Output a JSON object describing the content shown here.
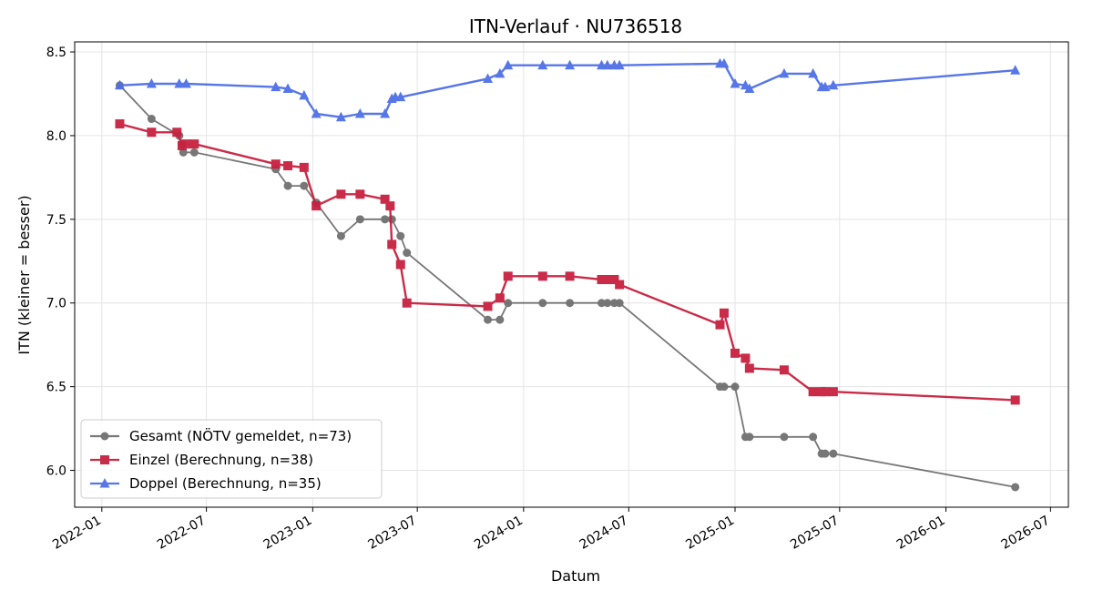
{
  "chart_data": {
    "type": "line",
    "title": "ITN-Verlauf · NU736518",
    "xlabel": "Datum",
    "ylabel": "ITN  (kleiner = besser)",
    "x_type": "date",
    "xlim": [
      "2021-11-15",
      "2026-08-01"
    ],
    "ylim": [
      5.78,
      8.56
    ],
    "x_ticks": [
      "2022-01",
      "2022-07",
      "2023-01",
      "2023-07",
      "2024-01",
      "2024-07",
      "2025-01",
      "2025-07",
      "2026-01",
      "2026-07"
    ],
    "y_ticks": [
      "6.0",
      "6.5",
      "7.0",
      "7.5",
      "8.0",
      "8.5"
    ],
    "grid": true,
    "legend_position": "lower-left",
    "series": [
      {
        "name": "Gesamt (NÖTV gemeldet, n=73)",
        "color": "#444444",
        "marker": "circle",
        "x": [
          "2022-02-01",
          "2022-03-28",
          "2022-05-15",
          "2022-05-20",
          "2022-05-22",
          "2022-06-10",
          "2022-10-29",
          "2022-11-19",
          "2022-12-17",
          "2023-01-07",
          "2023-02-19",
          "2023-03-24",
          "2023-05-06",
          "2023-05-18",
          "2023-06-02",
          "2023-06-13",
          "2023-10-31",
          "2023-11-21",
          "2023-12-05",
          "2024-02-03",
          "2024-03-21",
          "2024-05-15",
          "2024-05-25",
          "2024-06-06",
          "2024-06-15",
          "2024-12-06",
          "2024-12-13",
          "2025-01-01",
          "2025-01-19",
          "2025-01-26",
          "2025-03-27",
          "2025-05-16",
          "2025-05-31",
          "2025-06-06",
          "2025-06-20",
          "2026-05-01"
        ],
        "y": [
          8.3,
          8.1,
          8.0,
          7.95,
          7.9,
          7.9,
          7.8,
          7.7,
          7.7,
          7.6,
          7.4,
          7.5,
          7.5,
          7.5,
          7.4,
          7.3,
          6.9,
          6.9,
          7.0,
          7.0,
          7.0,
          7.0,
          7.0,
          7.0,
          7.0,
          6.5,
          6.5,
          6.5,
          6.2,
          6.2,
          6.2,
          6.2,
          6.1,
          6.1,
          6.1,
          5.9
        ]
      },
      {
        "name": "Einzel (Berechnung, n=38)",
        "color": "#c8203f",
        "marker": "square",
        "x": [
          "2022-02-01",
          "2022-03-28",
          "2022-05-11",
          "2022-05-20",
          "2022-05-27",
          "2022-06-10",
          "2022-10-29",
          "2022-11-19",
          "2022-12-17",
          "2023-01-07",
          "2023-02-19",
          "2023-03-24",
          "2023-05-06",
          "2023-05-15",
          "2023-05-18",
          "2023-06-02",
          "2023-06-13",
          "2023-10-31",
          "2023-11-21",
          "2023-12-05",
          "2024-02-03",
          "2024-03-21",
          "2024-05-15",
          "2024-05-25",
          "2024-06-06",
          "2024-06-15",
          "2024-12-06",
          "2024-12-13",
          "2025-01-01",
          "2025-01-19",
          "2025-01-26",
          "2025-03-27",
          "2025-05-16",
          "2025-05-31",
          "2025-06-06",
          "2025-06-20",
          "2026-05-01"
        ],
        "y": [
          8.07,
          8.02,
          8.02,
          7.94,
          7.95,
          7.95,
          7.83,
          7.82,
          7.81,
          7.58,
          7.65,
          7.65,
          7.62,
          7.58,
          7.35,
          7.23,
          7.0,
          6.98,
          7.03,
          7.16,
          7.16,
          7.16,
          7.14,
          7.14,
          7.14,
          7.11,
          6.87,
          6.94,
          6.7,
          6.67,
          6.61,
          6.6,
          6.47,
          6.47,
          6.47,
          6.47,
          6.42
        ]
      },
      {
        "name": "Doppel (Berechnung, n=35)",
        "color": "#4f6fe6",
        "marker": "triangle",
        "x": [
          "2022-02-01",
          "2022-03-28",
          "2022-05-15",
          "2022-05-27",
          "2022-10-29",
          "2022-11-19",
          "2022-12-17",
          "2023-01-07",
          "2023-02-19",
          "2023-03-24",
          "2023-05-06",
          "2023-05-18",
          "2023-05-24",
          "2023-06-02",
          "2023-10-31",
          "2023-11-21",
          "2023-12-05",
          "2024-02-03",
          "2024-03-21",
          "2024-05-15",
          "2024-05-25",
          "2024-06-06",
          "2024-06-15",
          "2024-12-06",
          "2024-12-13",
          "2025-01-01",
          "2025-01-19",
          "2025-01-26",
          "2025-03-27",
          "2025-05-16",
          "2025-05-31",
          "2025-06-06",
          "2025-06-20",
          "2026-05-01"
        ],
        "y": [
          8.3,
          8.31,
          8.31,
          8.31,
          8.29,
          8.28,
          8.24,
          8.13,
          8.11,
          8.13,
          8.13,
          8.22,
          8.23,
          8.23,
          8.34,
          8.37,
          8.42,
          8.42,
          8.42,
          8.42,
          8.42,
          8.42,
          8.42,
          8.43,
          8.43,
          8.31,
          8.3,
          8.28,
          8.37,
          8.37,
          8.29,
          8.29,
          8.3,
          8.39
        ]
      }
    ]
  }
}
